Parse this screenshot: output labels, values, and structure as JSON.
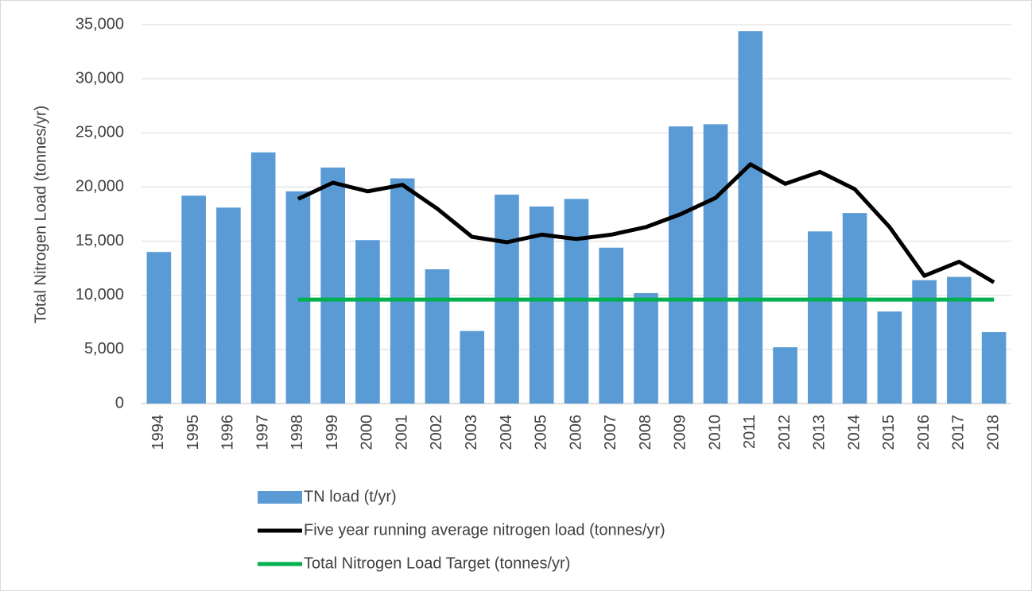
{
  "chart_data": {
    "type": "bar",
    "y_label": "Total Nitrogen Load (tonnes/yr)",
    "categories": [
      "1994",
      "1995",
      "1996",
      "1997",
      "1998",
      "1999",
      "2000",
      "2001",
      "2002",
      "2003",
      "2004",
      "2005",
      "2006",
      "2007",
      "2008",
      "2009",
      "2010",
      "2011",
      "2012",
      "2013",
      "2014",
      "2015",
      "2016",
      "2017",
      "2018"
    ],
    "series": [
      {
        "name": "TN load (t/yr)",
        "type": "bar",
        "color": "#5b9bd5",
        "values": [
          14000,
          19200,
          18100,
          23200,
          19600,
          21800,
          15100,
          20800,
          12400,
          6700,
          19300,
          18200,
          18900,
          14400,
          10200,
          25600,
          25800,
          34400,
          5200,
          15900,
          17600,
          8500,
          11400,
          11700,
          6600
        ]
      },
      {
        "name": "Five year running average nitrogen load (tonnes/yr)",
        "type": "line",
        "color": "#000000",
        "values": [
          null,
          null,
          null,
          null,
          18900,
          20400,
          19600,
          20200,
          18000,
          15400,
          14900,
          15600,
          15200,
          15600,
          16300,
          17500,
          19000,
          22100,
          20300,
          21400,
          19800,
          16300,
          11800,
          13100,
          11200
        ]
      },
      {
        "name": "Total Nitrogen Load Target (tonnes/yr)",
        "type": "line",
        "color": "#00b050",
        "values": [
          null,
          null,
          null,
          null,
          9600,
          9600,
          9600,
          9600,
          9600,
          9600,
          9600,
          9600,
          9600,
          9600,
          9600,
          9600,
          9600,
          9600,
          9600,
          9600,
          9600,
          9600,
          9600,
          9600,
          9600
        ]
      }
    ],
    "ylim": [
      0,
      35000
    ],
    "yticks": [
      0,
      {
        "value": 5000,
        "label": "5,000"
      },
      {
        "value": 10000,
        "label": "10,000"
      },
      {
        "value": 15000,
        "label": "15,000"
      },
      {
        "value": 20000,
        "label": "20,000"
      },
      {
        "value": 25000,
        "label": "25,000"
      },
      {
        "value": 30000,
        "label": "30,000"
      },
      {
        "value": 35000,
        "label": "35,000"
      }
    ],
    "grid": true
  }
}
